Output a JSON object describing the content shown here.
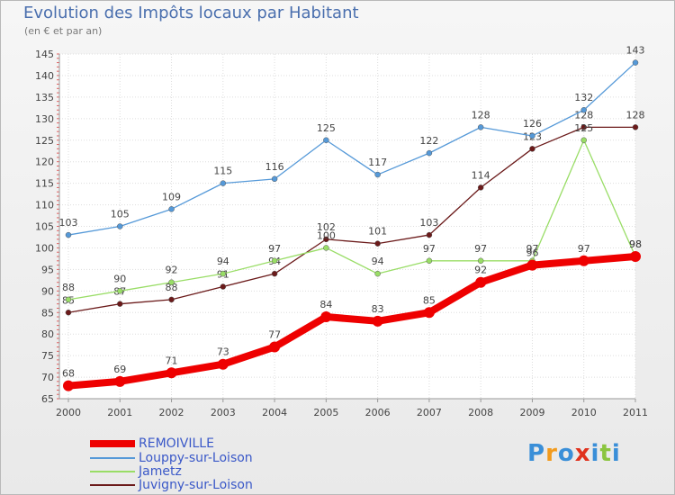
{
  "title": "Evolution des Impôts locaux par Habitant",
  "subtitle": "(en € et par an)",
  "logo": {
    "letters": [
      "P",
      "r",
      "o",
      "x",
      "i",
      "t",
      "i"
    ],
    "colors": [
      "#3a8fd8",
      "#f29b1d",
      "#3a8fd8",
      "#e0311d",
      "#3a8fd8",
      "#8bc53f",
      "#3a8fd8"
    ]
  },
  "chart_data": {
    "type": "line",
    "title": "Evolution des Impôts locaux par Habitant",
    "ylabel": "(en € et par an)",
    "x": [
      "2000",
      "2001",
      "2002",
      "2003",
      "2004",
      "2005",
      "2006",
      "2007",
      "2008",
      "2009",
      "2010",
      "2011"
    ],
    "ylim": [
      65,
      145
    ],
    "yticks": [
      "65",
      "70",
      "75",
      "80",
      "85",
      "90",
      "95",
      "100",
      "105",
      "110",
      "115",
      "120",
      "125",
      "130",
      "135",
      "140",
      "145"
    ],
    "series": [
      {
        "name": "Juvigny-sur-Loison",
        "color": "#6b1a1a",
        "values": [
          85,
          87,
          88,
          91,
          94,
          102,
          101,
          103,
          114,
          123,
          128,
          128
        ]
      },
      {
        "name": "Jametz",
        "color": "#99dd66",
        "values": [
          88,
          90,
          92,
          94,
          97,
          100,
          94,
          97,
          97,
          97,
          125,
          98
        ]
      },
      {
        "name": "Louppy-sur-Loison",
        "color": "#5599d8",
        "values": [
          103,
          105,
          109,
          115,
          116,
          125,
          117,
          122,
          128,
          126,
          132,
          143
        ]
      },
      {
        "name": "REMOIVILLE",
        "color": "#ee0000",
        "values": [
          68,
          69,
          71,
          73,
          77,
          84,
          83,
          85,
          92,
          96,
          97,
          98
        ]
      }
    ],
    "legend": [
      "REMOIVILLE",
      "Louppy-sur-Loison",
      "Jametz",
      "Juvigny-sur-Loison"
    ]
  }
}
